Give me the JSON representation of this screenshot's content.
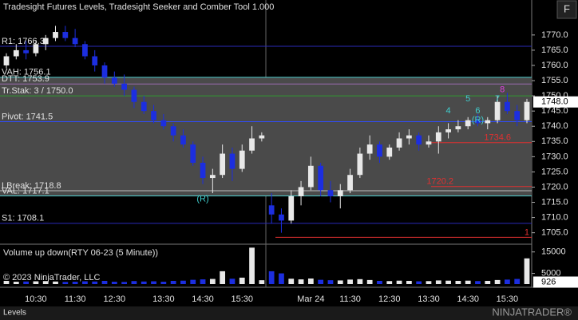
{
  "chart_data": {
    "type": "candlestick",
    "title": "Tradesight Futures Levels, Tradesight Seeker and Comber Tool 1.000",
    "categories": [
      null,
      null,
      null,
      "10:30",
      null,
      null,
      null,
      "11:30",
      null,
      null,
      null,
      "12:30",
      null,
      null,
      null,
      null,
      "13:30",
      null,
      null,
      null,
      "14:30",
      null,
      null,
      null,
      "15:30",
      null,
      null,
      null,
      null,
      null,
      null,
      "Mar 24",
      null,
      null,
      null,
      "11:30",
      null,
      null,
      null,
      "12:30",
      null,
      null,
      null,
      "13:30",
      null,
      null,
      null,
      "14:30",
      null,
      null,
      null,
      "15:30",
      null,
      null
    ],
    "open": [
      1760,
      1763,
      1765,
      1764,
      1767,
      1769,
      1771,
      1769,
      1767,
      1763,
      1760,
      1756,
      1754,
      1752,
      1748,
      1745,
      1742,
      1740,
      1737,
      1734,
      1728,
      1723,
      1724,
      1731,
      1726,
      1732,
      1736,
      1714,
      1711,
      1709,
      1717,
      1720,
      1727,
      1719,
      1717,
      1719,
      1724,
      1731,
      1734,
      1730,
      1733,
      1736,
      1737,
      1734,
      1735,
      1738,
      1739,
      1740,
      1742,
      1741,
      1742,
      1748,
      1745,
      1742
    ],
    "high": [
      1764,
      1767,
      1768,
      1768,
      1770,
      1773,
      1773,
      1772,
      1768,
      1765,
      1761,
      1758,
      1757,
      1753,
      1750,
      1747,
      1744,
      1741,
      1739,
      1735,
      1730,
      1726,
      1734,
      1733,
      1734,
      1740,
      1738,
      1718,
      1713,
      1719,
      1722,
      1730,
      1728,
      1722,
      1721,
      1726,
      1733,
      1737,
      1735,
      1734,
      1738,
      1739,
      1738,
      1737,
      1740,
      1741,
      1742,
      1743,
      1744,
      1743,
      1750,
      1751,
      1747,
      1749
    ],
    "low": [
      1759,
      1762,
      1762,
      1763,
      1765,
      1768,
      1768,
      1766,
      1762,
      1758,
      1754,
      1753,
      1750,
      1746,
      1744,
      1741,
      1739,
      1735,
      1733,
      1727,
      1721,
      1718,
      1723,
      1722,
      1725,
      1731,
      1735,
      1708,
      1705,
      1708,
      1714,
      1719,
      1717,
      1715,
      1713,
      1718,
      1723,
      1729,
      1728,
      1729,
      1732,
      1734,
      1732,
      1733,
      1731,
      1736,
      1738,
      1739,
      1740,
      1739,
      1741,
      1744,
      1740,
      1741
    ],
    "close": [
      1763,
      1765,
      1764,
      1767,
      1769,
      1771,
      1769,
      1767,
      1763,
      1760,
      1756,
      1754,
      1752,
      1748,
      1745,
      1742,
      1740,
      1737,
      1734,
      1728,
      1723,
      1724,
      1731,
      1726,
      1732,
      1736,
      1737,
      1711,
      1709,
      1717,
      1720,
      1727,
      1719,
      1717,
      1719,
      1724,
      1731,
      1734,
      1730,
      1733,
      1736,
      1737,
      1734,
      1735,
      1738,
      1739,
      1740,
      1742,
      1741,
      1742,
      1748,
      1745,
      1742,
      1748
    ],
    "volume": [
      1500,
      1100,
      1200,
      1300,
      1400,
      1200,
      1000,
      1100,
      1300,
      1200,
      1500,
      1100,
      1000,
      1400,
      1200,
      1300,
      1100,
      1500,
      1600,
      2000,
      2200,
      2400,
      6000,
      2500,
      3000,
      17000,
      1800,
      6000,
      5000,
      2500,
      2200,
      2600,
      2000,
      1800,
      1700,
      2100,
      2300,
      1900,
      1500,
      1400,
      1600,
      1500,
      1300,
      1400,
      1700,
      1600,
      1500,
      1600,
      1400,
      1500,
      1900,
      2100,
      2400,
      12000
    ],
    "up_color": "#e8e8e8",
    "down_color": "#1c2ee0",
    "ylim": [
      1701.5,
      1781.5
    ],
    "yticks": [
      {
        "value": 1705,
        "label": "1705.0"
      },
      {
        "value": 1710,
        "label": "1710.0"
      },
      {
        "value": 1715,
        "label": "1715.0"
      },
      {
        "value": 1720,
        "label": "1720.0"
      },
      {
        "value": 1725,
        "label": "1725.0"
      },
      {
        "value": 1730,
        "label": "1730.0"
      },
      {
        "value": 1735,
        "label": "1735.0"
      },
      {
        "value": 1740,
        "label": "1740.0"
      },
      {
        "value": 1745,
        "label": "1745.0"
      },
      {
        "value": 1750,
        "label": "1750.0"
      },
      {
        "value": 1755,
        "label": "1755.0"
      },
      {
        "value": 1760,
        "label": "1760.0"
      },
      {
        "value": 1765,
        "label": "1765.0"
      },
      {
        "value": 1770,
        "label": "1770.0"
      }
    ],
    "last_price": {
      "value": 1748,
      "label": "1748.0"
    },
    "levels": [
      {
        "label": "R1: 1766.3",
        "value": 1766.3,
        "color": "#2a2ab8"
      },
      {
        "label": "VAH: 1756.1",
        "value": 1756.1,
        "color": "#4fd0d0"
      },
      {
        "label": "DTT: 1753.9",
        "value": 1753.9,
        "color": "#9a6ab0"
      },
      {
        "label": "Tr.Stak: 3 / 1750.0",
        "value": 1750.0,
        "color": "#2f9a2f"
      },
      {
        "label": "Pivot: 1741.5",
        "value": 1741.5,
        "color": "#2f4dff"
      },
      {
        "label": "LBreak: 1718.8",
        "value": 1718.8,
        "color": "#bdbdbd"
      },
      {
        "label": "VAL: 1717.1",
        "value": 1717.1,
        "color": "#4fd0d0"
      },
      {
        "label": "S1: 1708.1",
        "value": 1708.1,
        "color": "#2a2ab8"
      }
    ],
    "targets": [
      {
        "label": "1734.6",
        "value": 1734.6,
        "color": "#e03030"
      },
      {
        "label": "1720.2",
        "value": 1720.2,
        "color": "#e03030"
      },
      {
        "label": "1",
        "value": 1703.5,
        "color": "#e03030"
      }
    ],
    "annotations": [
      {
        "text": "(R)",
        "color": "#40d0d0"
      },
      {
        "text": "4",
        "color": "#40d0d0"
      },
      {
        "text": "5",
        "color": "#40d0d0"
      },
      {
        "text": "6",
        "color": "#40d0d0"
      },
      {
        "text": "(R)",
        "color": "#40d0d0"
      },
      {
        "text": "7",
        "color": "#40d0d0"
      },
      {
        "text": "8",
        "color": "#e040e0"
      }
    ],
    "volume_title": "Volume up down(RTY 06-23 (5 Minute))",
    "volume_ylim": [
      0,
      17500
    ],
    "volume_yticks": [
      5000,
      15000
    ],
    "last_volume": 926,
    "copyright": "© 2023 NinjaTrader, LLC",
    "tab": "Levels",
    "logo": "NINJATRADER®",
    "button": "F"
  }
}
